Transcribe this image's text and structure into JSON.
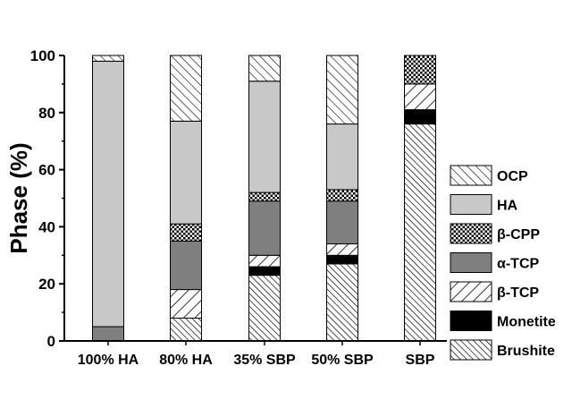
{
  "chart_data": {
    "type": "bar",
    "stacked": true,
    "title": "",
    "xlabel": "",
    "ylabel": "Phase (%)",
    "ylim": [
      0,
      100
    ],
    "yticks": [
      0,
      20,
      40,
      60,
      80,
      100
    ],
    "grid": false,
    "legend_position": "right",
    "categories": [
      "100% HA",
      "80% HA",
      "35% SBP",
      "50% SBP",
      "SBP"
    ],
    "series": [
      {
        "name": "Brushite",
        "pattern": "hatch-dense-diag",
        "values": [
          0,
          8,
          23,
          27,
          76
        ]
      },
      {
        "name": "Monetite",
        "pattern": "solid-black",
        "values": [
          0,
          0,
          3,
          3,
          5
        ]
      },
      {
        "name": "β-TCP",
        "pattern": "hatch-white-diag",
        "values": [
          0,
          10,
          4,
          4,
          9
        ]
      },
      {
        "name": "α-TCP",
        "pattern": "solid-dark-gray",
        "values": [
          5,
          17,
          19,
          15,
          0
        ]
      },
      {
        "name": "β-CPP",
        "pattern": "crosshatch",
        "values": [
          0,
          6,
          3,
          4,
          10
        ]
      },
      {
        "name": "HA",
        "pattern": "solid-light-gray",
        "values": [
          93,
          36,
          39,
          23,
          0
        ]
      },
      {
        "name": "OCP",
        "pattern": "hatch-diag",
        "values": [
          2,
          23,
          9,
          24,
          0
        ]
      }
    ],
    "legend_order": [
      "OCP",
      "HA",
      "β-CPP",
      "α-TCP",
      "β-TCP",
      "Monetite",
      "Brushite"
    ],
    "colors": {
      "dark_gray": "#7f7f7f",
      "light_gray": "#c8c8c8",
      "black": "#000000"
    }
  }
}
